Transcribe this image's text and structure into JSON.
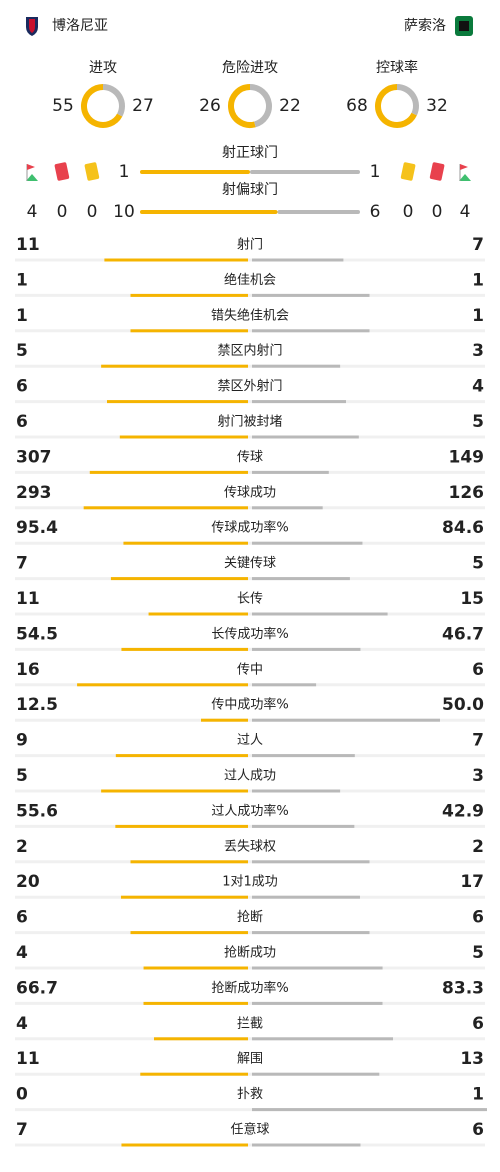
{
  "header": {
    "home_team": "博洛尼亚",
    "away_team": "萨索洛"
  },
  "donuts": [
    {
      "label": "进攻",
      "values": [
        55,
        27
      ]
    },
    {
      "label": "危险进攻",
      "values": [
        26,
        22
      ]
    },
    {
      "label": "控球率",
      "values": [
        68,
        32
      ]
    }
  ],
  "shot_bars": [
    {
      "label": "射正球门",
      "values": [
        1,
        1
      ]
    },
    {
      "label": "射偏球门",
      "values": [
        10,
        6
      ]
    }
  ],
  "discipline": {
    "home": {
      "corners": 4,
      "red_cards": 0,
      "yellow_cards": 0
    },
    "away": {
      "yellow_cards": 0,
      "red_cards": 0,
      "corners": 4
    }
  },
  "stats": [
    {
      "label": "射门",
      "values": [
        11,
        7
      ]
    },
    {
      "label": "绝佳机会",
      "values": [
        1,
        1
      ]
    },
    {
      "label": "错失绝佳机会",
      "values": [
        1,
        1
      ]
    },
    {
      "label": "禁区内射门",
      "values": [
        5,
        3
      ]
    },
    {
      "label": "禁区外射门",
      "values": [
        6,
        4
      ]
    },
    {
      "label": "射门被封堵",
      "values": [
        6,
        5
      ]
    },
    {
      "label": "传球",
      "values": [
        307,
        149
      ]
    },
    {
      "label": "传球成功",
      "values": [
        293,
        126
      ]
    },
    {
      "label": "传球成功率%",
      "values": [
        95.4,
        84.6
      ]
    },
    {
      "label": "关键传球",
      "values": [
        7,
        5
      ]
    },
    {
      "label": "长传",
      "values": [
        11,
        15
      ]
    },
    {
      "label": "长传成功率%",
      "values": [
        54.5,
        46.7
      ]
    },
    {
      "label": "传中",
      "values": [
        16,
        6
      ]
    },
    {
      "label": "传中成功率%",
      "values": [
        12.5,
        50
      ],
      "value_labels": [
        "12.5",
        "50.0"
      ]
    },
    {
      "label": "过人",
      "values": [
        9,
        7
      ]
    },
    {
      "label": "过人成功",
      "values": [
        5,
        3
      ]
    },
    {
      "label": "过人成功率%",
      "values": [
        55.6,
        42.9
      ]
    },
    {
      "label": "丢失球权",
      "values": [
        2,
        2
      ]
    },
    {
      "label": "1对1成功",
      "values": [
        20,
        17
      ]
    },
    {
      "label": "抢断",
      "values": [
        6,
        6
      ]
    },
    {
      "label": "抢断成功",
      "values": [
        4,
        5
      ]
    },
    {
      "label": "抢断成功率%",
      "values": [
        66.7,
        83.3
      ]
    },
    {
      "label": "拦截",
      "values": [
        4,
        6
      ]
    },
    {
      "label": "解围",
      "values": [
        11,
        13
      ]
    },
    {
      "label": "扑救",
      "values": [
        0,
        1
      ]
    },
    {
      "label": "任意球",
      "values": [
        7,
        6
      ]
    }
  ]
}
